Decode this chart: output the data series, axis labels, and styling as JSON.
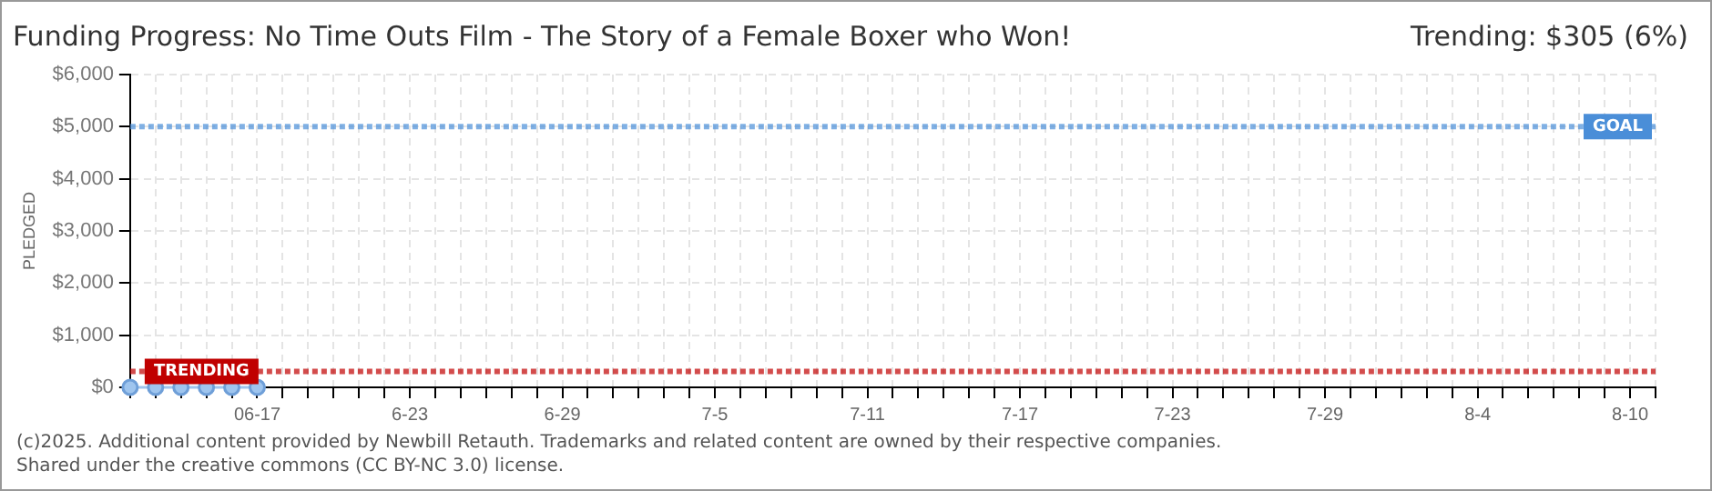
{
  "chart_data": {
    "type": "line",
    "title": "Funding Progress: No Time Outs Film - The Story of a Female Boxer who Won!",
    "subtitle": "Trending: $305 (6%)",
    "ylabel": "PLEDGED",
    "categories": [
      null,
      null,
      null,
      null,
      null,
      "06-17",
      null,
      null,
      null,
      null,
      null,
      "6-23",
      null,
      null,
      null,
      null,
      null,
      "6-29",
      null,
      null,
      null,
      null,
      null,
      "7-5",
      null,
      null,
      null,
      null,
      null,
      "7-11",
      null,
      null,
      null,
      null,
      null,
      "7-17",
      null,
      null,
      null,
      null,
      null,
      "7-23",
      null,
      null,
      null,
      null,
      null,
      "7-29",
      null,
      null,
      null,
      null,
      null,
      "8-4",
      null,
      null,
      null,
      null,
      null,
      "8-10",
      null
    ],
    "series": [
      {
        "color": "#9fc5ee",
        "values": [
          0,
          0,
          0,
          0,
          0,
          0,
          null,
          null,
          null,
          null,
          null,
          null,
          null,
          null,
          null,
          null,
          null,
          null,
          null,
          null,
          null,
          null,
          null,
          null,
          null,
          null,
          null,
          null,
          null,
          null,
          null,
          null,
          null,
          null,
          null,
          null,
          null,
          null,
          null,
          null,
          null,
          null,
          null,
          null,
          null,
          null,
          null,
          null,
          null,
          null,
          null,
          null,
          null,
          null,
          null,
          null,
          null,
          null,
          null,
          null,
          null
        ]
      }
    ],
    "ylim": [
      0,
      6000
    ],
    "yticks": [
      {
        "value": 0,
        "label": "$0"
      },
      {
        "value": 1000,
        "label": "$1,000"
      },
      {
        "value": 2000,
        "label": "$2,000"
      },
      {
        "value": 3000,
        "label": "$3,000"
      },
      {
        "value": 4000,
        "label": "$4,000"
      },
      {
        "value": 5000,
        "label": "$5,000"
      },
      {
        "value": 6000,
        "label": "$6,000"
      }
    ],
    "ref_lines": [
      {
        "axis": "y",
        "value": 5000,
        "label": "GOAL",
        "color": "#4a8ed8",
        "line_style": "dotted"
      },
      {
        "axis": "y",
        "value": 305,
        "label": "TRENDING",
        "color": "#c00000",
        "line_style": "dotted"
      }
    ],
    "annotations": [
      "(c)2025. Additional content provided by Newbill Retauth. Trademarks and related content are owned by their respective companies.",
      "Shared under the creative commons (CC BY-NC 3.0) license."
    ],
    "grid": true,
    "marker": "circle",
    "line_style": "solid",
    "legend": false
  }
}
